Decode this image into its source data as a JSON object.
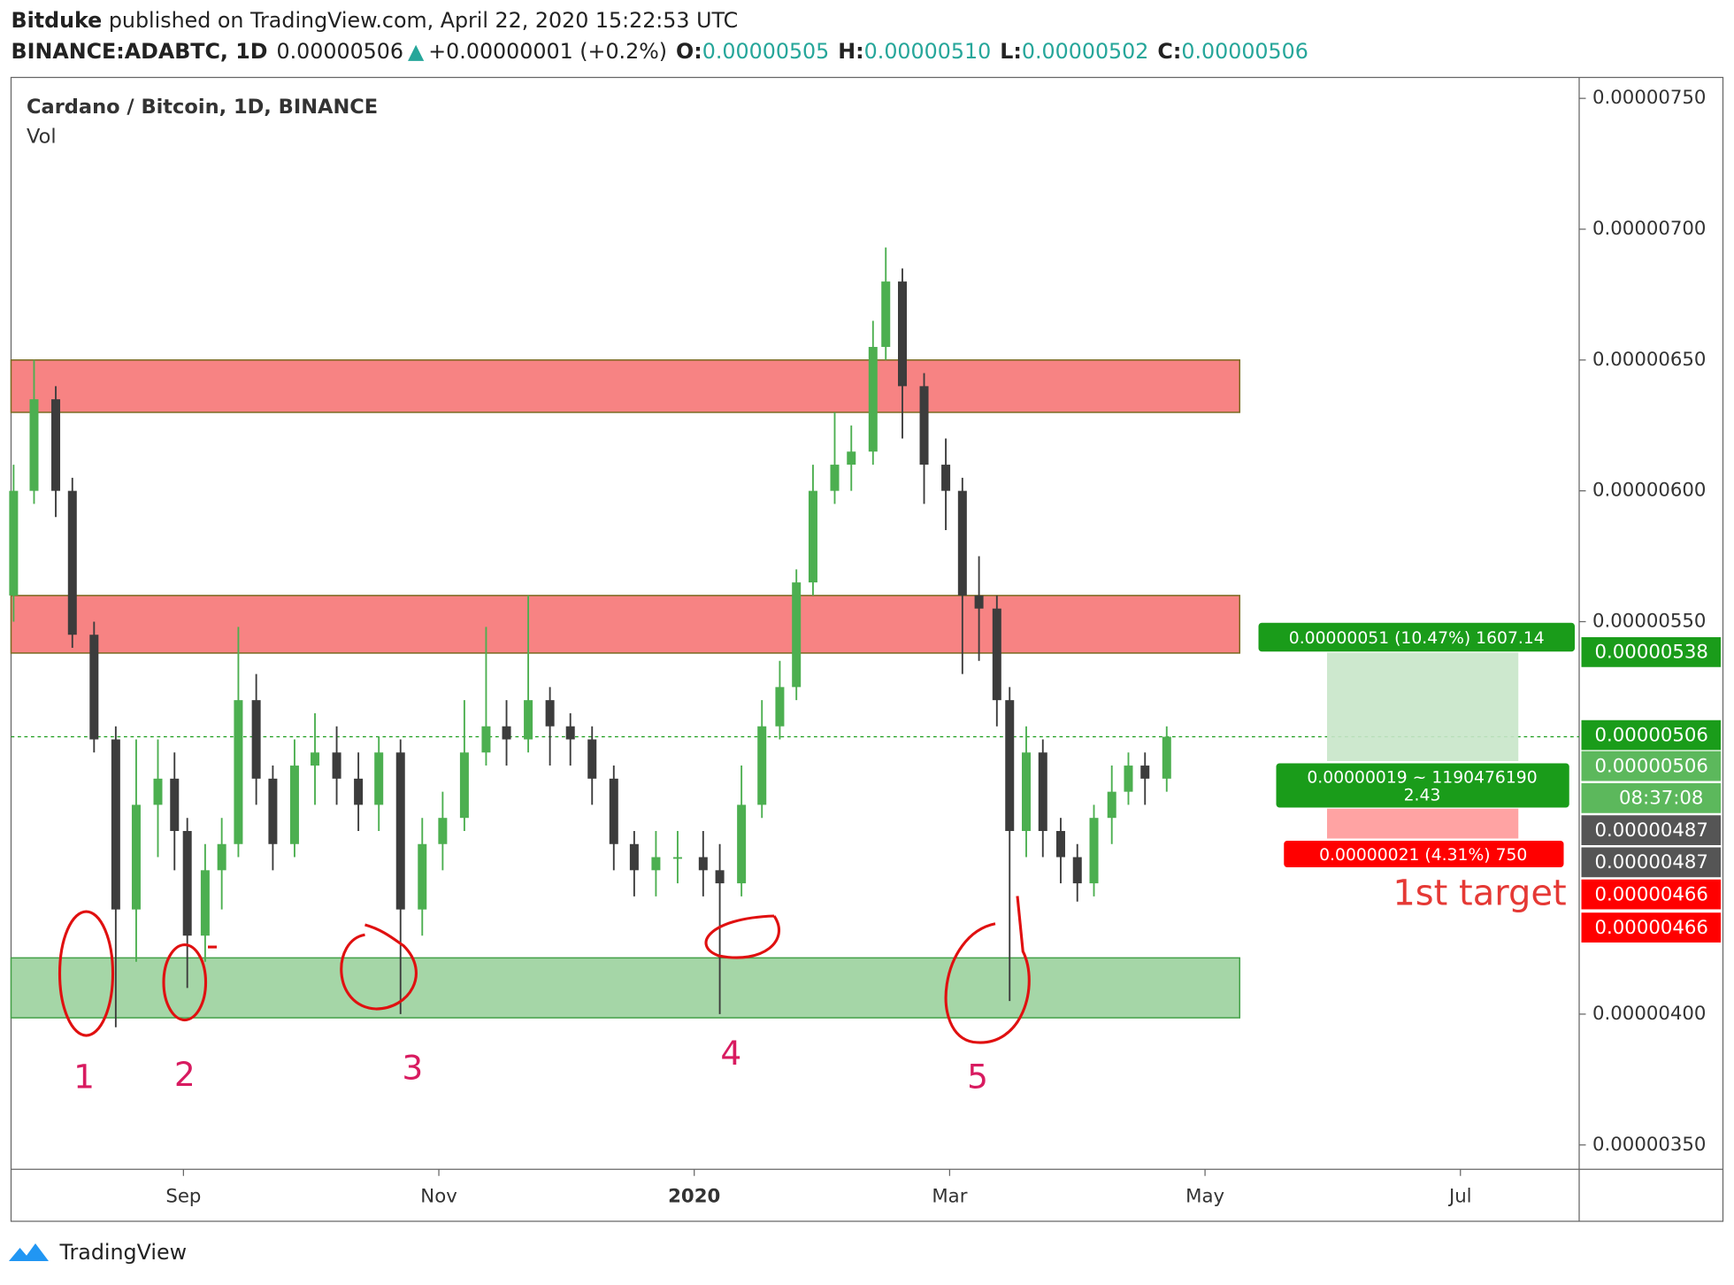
{
  "header": {
    "author": "Bitduke",
    "published": " published on TradingView.com, April 22, 2020 15:22:53 UTC"
  },
  "symbol_line": {
    "symbol": "BINANCE:ADABTC, 1D",
    "last": "0.00000506",
    "arrow": "▲",
    "change": "+0.00000001 (+0.2%)",
    "o_label": "O:",
    "o": "0.00000505",
    "h_label": "H:",
    "h": "0.00000510",
    "l_label": "L:",
    "l": "0.00000502",
    "c_label": "C:",
    "c": "0.00000506"
  },
  "chart_data": {
    "type": "candlestick",
    "title": "Cardano / Bitcoin, 1D, BINANCE",
    "subtitle": "Vol",
    "up_color": "#4caf50",
    "down_color": "#3c3c3c",
    "x": [
      7.67,
      7.83,
      8.0,
      8.13,
      8.3,
      8.47,
      8.63,
      8.8,
      8.93,
      9.03,
      9.17,
      9.3,
      9.43,
      9.57,
      9.7,
      9.87,
      10.03,
      10.2,
      10.37,
      10.53,
      10.7,
      10.87,
      11.03,
      11.2,
      11.37,
      11.53,
      11.7,
      11.87,
      12.03,
      12.2,
      12.37,
      12.53,
      12.7,
      12.87,
      13.07,
      13.2,
      13.37,
      13.53,
      13.67,
      13.8,
      13.93,
      14.1,
      14.23,
      14.4,
      14.5,
      14.63,
      14.8,
      14.97,
      15.1,
      15.23,
      15.37,
      15.47,
      15.6,
      15.73,
      15.87,
      16.0,
      16.13,
      16.27,
      16.4,
      16.53,
      16.7
    ],
    "open": [
      5.6e-06,
      6e-06,
      6.35e-06,
      6e-06,
      5.45e-06,
      5.05e-06,
      4.4e-06,
      4.8e-06,
      4.9e-06,
      4.7e-06,
      4.3e-06,
      4.55e-06,
      4.65e-06,
      5.2e-06,
      4.9e-06,
      4.65e-06,
      4.95e-06,
      5e-06,
      4.9e-06,
      4.8e-06,
      5e-06,
      4.4e-06,
      4.65e-06,
      4.75e-06,
      5e-06,
      5.1e-06,
      5.05e-06,
      5.2e-06,
      5.1e-06,
      5.05e-06,
      4.9e-06,
      4.65e-06,
      4.55e-06,
      4.6e-06,
      4.6e-06,
      4.55e-06,
      4.5e-06,
      4.8e-06,
      5.1e-06,
      5.25e-06,
      5.65e-06,
      6e-06,
      6.1e-06,
      6.15e-06,
      6.55e-06,
      6.8e-06,
      6.4e-06,
      6.1e-06,
      6e-06,
      5.6e-06,
      5.55e-06,
      5.2e-06,
      4.7e-06,
      5e-06,
      4.7e-06,
      4.6e-06,
      4.5e-06,
      4.75e-06,
      4.85e-06,
      4.95e-06,
      4.9e-06
    ],
    "high": [
      6.1e-06,
      6.5e-06,
      6.4e-06,
      6.05e-06,
      5.5e-06,
      5.1e-06,
      5.05e-06,
      5.05e-06,
      5e-06,
      4.75e-06,
      4.65e-06,
      4.75e-06,
      5.48e-06,
      5.3e-06,
      4.95e-06,
      5.05e-06,
      5.15e-06,
      5.1e-06,
      5e-06,
      5.06e-06,
      5.05e-06,
      4.75e-06,
      4.85e-06,
      5.2e-06,
      5.48e-06,
      5.2e-06,
      5.6e-06,
      5.25e-06,
      5.15e-06,
      5.1e-06,
      4.95e-06,
      4.7e-06,
      4.7e-06,
      4.7e-06,
      4.7e-06,
      4.65e-06,
      4.95e-06,
      5.2e-06,
      5.35e-06,
      5.7e-06,
      6.1e-06,
      6.3e-06,
      6.25e-06,
      6.65e-06,
      6.93e-06,
      6.85e-06,
      6.45e-06,
      6.2e-06,
      6.05e-06,
      5.75e-06,
      5.6e-06,
      5.25e-06,
      5.1e-06,
      5.05e-06,
      4.75e-06,
      4.65e-06,
      4.8e-06,
      4.95e-06,
      5e-06,
      5e-06,
      5.1e-06
    ],
    "low": [
      5.5e-06,
      5.95e-06,
      5.9e-06,
      5.4e-06,
      5e-06,
      3.95e-06,
      4.2e-06,
      4.6e-06,
      4.55e-06,
      4.1e-06,
      4.2e-06,
      4.4e-06,
      4.6e-06,
      4.8e-06,
      4.55e-06,
      4.6e-06,
      4.8e-06,
      4.8e-06,
      4.7e-06,
      4.7e-06,
      4e-06,
      4.3e-06,
      4.55e-06,
      4.7e-06,
      4.95e-06,
      4.95e-06,
      5e-06,
      4.95e-06,
      4.95e-06,
      4.8e-06,
      4.55e-06,
      4.45e-06,
      4.45e-06,
      4.5e-06,
      4.45e-06,
      4e-06,
      4.45e-06,
      4.75e-06,
      5.05e-06,
      5.2e-06,
      5.6e-06,
      5.95e-06,
      6e-06,
      6.1e-06,
      6.5e-06,
      6.2e-06,
      5.95e-06,
      5.85e-06,
      5.3e-06,
      5.35e-06,
      5.1e-06,
      4.05e-06,
      4.6e-06,
      4.6e-06,
      4.5e-06,
      4.43e-06,
      4.45e-06,
      4.65e-06,
      4.8e-06,
      4.8e-06,
      4.85e-06
    ],
    "close": [
      6e-06,
      6.35e-06,
      6e-06,
      5.45e-06,
      5.05e-06,
      4.4e-06,
      4.8e-06,
      4.9e-06,
      4.7e-06,
      4.3e-06,
      4.55e-06,
      4.65e-06,
      5.2e-06,
      4.9e-06,
      4.65e-06,
      4.95e-06,
      5e-06,
      4.9e-06,
      4.8e-06,
      5e-06,
      4.4e-06,
      4.65e-06,
      4.75e-06,
      5e-06,
      5.1e-06,
      5.05e-06,
      5.2e-06,
      5.1e-06,
      5.05e-06,
      4.9e-06,
      4.65e-06,
      4.55e-06,
      4.6e-06,
      4.6e-06,
      4.55e-06,
      4.5e-06,
      4.8e-06,
      5.1e-06,
      5.25e-06,
      5.65e-06,
      6e-06,
      6.1e-06,
      6.15e-06,
      6.55e-06,
      6.8e-06,
      6.4e-06,
      6.1e-06,
      6e-06,
      5.6e-06,
      5.55e-06,
      5.2e-06,
      4.7e-06,
      5e-06,
      4.7e-06,
      4.6e-06,
      4.5e-06,
      4.75e-06,
      4.85e-06,
      4.95e-06,
      4.9e-06,
      5.06e-06
    ],
    "xlim": [
      7.65,
      19.93
    ],
    "xticks": [
      {
        "value": 9,
        "label": "Sep"
      },
      {
        "value": 11,
        "label": "Nov"
      },
      {
        "value": 13,
        "label": "2020"
      },
      {
        "value": 15,
        "label": "Mar"
      },
      {
        "value": 17,
        "label": "May"
      },
      {
        "value": 19,
        "label": "Jul"
      }
    ],
    "ylim": [
      3.407e-06,
      7.58e-06
    ],
    "yticks": [
      {
        "value": 3.5e-06,
        "label": "0.00000350"
      },
      {
        "value": 4e-06,
        "label": "0.00000400"
      },
      {
        "value": 5.5e-06,
        "label": "0.00000550"
      },
      {
        "value": 6e-06,
        "label": "0.00000600"
      },
      {
        "value": 6.5e-06,
        "label": "0.00000650"
      },
      {
        "value": 7e-06,
        "label": "0.00000700"
      },
      {
        "value": 7.5e-06,
        "label": "0.00000750"
      }
    ],
    "zones": [
      {
        "low": 6.3e-06,
        "high": 6.5e-06,
        "color": "#f78383"
      },
      {
        "low": 5.38e-06,
        "high": 5.6e-06,
        "color": "#f78383"
      },
      {
        "low": 3.986e-06,
        "high": 4.215e-06,
        "color": "#a5d6a7"
      }
    ],
    "current_price": 5.06e-06,
    "price_labels": [
      {
        "label": "0.00000538",
        "color": "#1a9c1a"
      },
      {
        "label": "0.00000506",
        "color": "#1a9c1a"
      },
      {
        "label": "0.00000506",
        "color": "#5cb85c"
      },
      {
        "label": "08:37:08",
        "color": "#5cb85c"
      },
      {
        "label": "0.00000487",
        "color": "#555555"
      },
      {
        "label": "0.00000487",
        "color": "#555555"
      },
      {
        "label": "0.00000466",
        "color": "#ff0000"
      },
      {
        "label": "0.00000466",
        "color": "#ff0000"
      }
    ],
    "position": {
      "target_label": "0.00000051 (10.47%) 1607.14",
      "mid_label": "0.00000019 ~ 1190476190",
      "ratio": "2.43",
      "stop_label": "0.00000021 (4.31%) 750"
    },
    "annotations": [
      "1",
      "2",
      "3",
      "4",
      "5",
      "1st target"
    ]
  },
  "footer": {
    "brand": "TradingView"
  }
}
